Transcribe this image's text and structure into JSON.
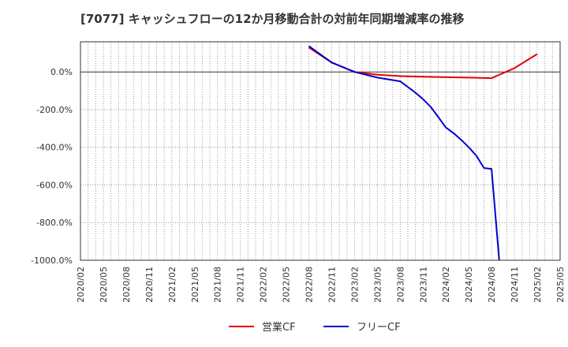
{
  "chart_data": {
    "type": "line",
    "title": "[7077]  キャッシュフローの12か月移動合計の対前年同期増減率の推移",
    "xlabel": "",
    "ylabel": "",
    "x_ticks": [
      "2020/02",
      "2020/05",
      "2020/08",
      "2020/11",
      "2021/02",
      "2021/05",
      "2021/08",
      "2021/11",
      "2022/02",
      "2022/05",
      "2022/08",
      "2022/11",
      "2023/02",
      "2023/05",
      "2023/08",
      "2023/11",
      "2024/02",
      "2024/05",
      "2024/08",
      "2024/11",
      "2025/02",
      "2025/05"
    ],
    "y_ticks": [
      0,
      -200,
      -400,
      -600,
      -800,
      -1000
    ],
    "y_tick_labels": [
      "0.0%",
      "-200.0%",
      "-400.0%",
      "-600.0%",
      "-800.0%",
      "-1000.0%"
    ],
    "ylim": [
      -1000,
      160
    ],
    "grid": true,
    "legend_position": "bottom",
    "series": [
      {
        "name": "営業CF",
        "color": "#e60000",
        "x": [
          "2022/08",
          "2022/11",
          "2023/02",
          "2023/05",
          "2023/08",
          "2023/11",
          "2024/02",
          "2024/05",
          "2024/08",
          "2024/11",
          "2025/02"
        ],
        "values": [
          130,
          50,
          0,
          -15,
          -22,
          -25,
          -28,
          -30,
          -33,
          20,
          95
        ]
      },
      {
        "name": "フリーCF",
        "color": "#0000cc",
        "x": [
          "2022/08",
          "2022/11",
          "2023/02",
          "2023/05",
          "2023/08",
          "2023/09",
          "2023/10",
          "2023/11",
          "2023/12",
          "2024/01",
          "2024/02",
          "2024/03",
          "2024/04",
          "2024/05",
          "2024/06",
          "2024/07",
          "2024/08",
          "2024/09"
        ],
        "values": [
          137,
          50,
          0,
          -30,
          -50,
          -80,
          -110,
          -145,
          -185,
          -240,
          -295,
          -325,
          -360,
          -400,
          -445,
          -510,
          -515,
          -1000
        ]
      }
    ]
  }
}
